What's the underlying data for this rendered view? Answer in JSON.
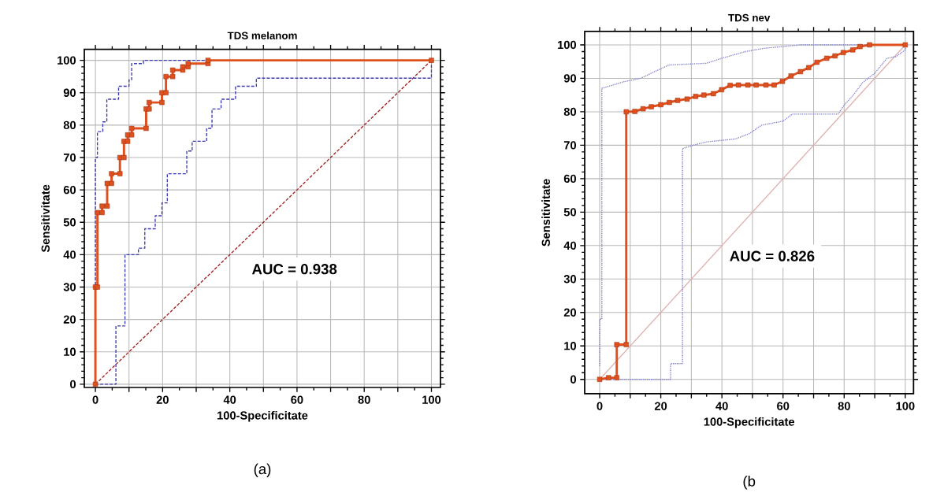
{
  "chart_data": [
    {
      "type": "line",
      "title": "TDS melanom",
      "xlabel": "100-Specificitate",
      "ylabel": "Sensitivitate",
      "annotations": [
        "AUC = 0.938",
        "(a)"
      ],
      "xlim": [
        -3.3,
        102.7
      ],
      "ylim": [
        -1,
        103.4
      ],
      "xticks": [
        0,
        {
          "value": 10,
          "label": null
        },
        20,
        {
          "value": 30,
          "label": null
        },
        40,
        {
          "value": 50,
          "label": null
        },
        60,
        {
          "value": 70,
          "label": null
        },
        80,
        {
          "value": 90,
          "label": null
        },
        100
      ],
      "yticks": [
        0,
        10,
        20,
        30,
        40,
        50,
        60,
        70,
        80,
        90,
        100
      ],
      "grid": true,
      "series": [
        {
          "color": "#a02020",
          "line_style": "dashed",
          "marker": "none",
          "x": [
            0,
            100
          ],
          "values": [
            0,
            100
          ]
        },
        {
          "color": "#3a3ab0",
          "line_style": "dashed",
          "marker": "none",
          "x": [
            0,
            0,
            0.6,
            0.6,
            2.2,
            2.2,
            3.4,
            3.4,
            6.9,
            6.9,
            10,
            10,
            10.8,
            10.8,
            14.3,
            14.3,
            100
          ],
          "values": [
            0,
            70,
            70,
            78,
            78,
            81,
            81,
            88,
            88,
            92,
            92,
            94,
            94,
            99,
            99,
            100,
            100
          ]
        },
        {
          "color": "#3a3ab0",
          "line_style": "dashed",
          "marker": "none",
          "x": [
            0,
            6.1,
            6.1,
            8.8,
            8.8,
            12.8,
            12.8,
            14.7,
            14.7,
            17.8,
            17.8,
            19.8,
            19.8,
            21.4,
            21.4,
            27.2,
            27.2,
            28.8,
            28.8,
            33.1,
            33.1,
            34.7,
            34.7,
            37.4,
            37.4,
            41.7,
            41.7,
            47.9,
            47.9,
            100,
            100
          ],
          "values": [
            0,
            0,
            18,
            18,
            40,
            40,
            42,
            42,
            48,
            48,
            52,
            52,
            56,
            56,
            65,
            65,
            72,
            72,
            75,
            75,
            79,
            79,
            85,
            85,
            88,
            88,
            92,
            92,
            94.5,
            94.5,
            100
          ]
        },
        {
          "color": "#e0501e",
          "line_style": "solid",
          "marker": "square",
          "x": [
            0,
            0,
            0.6,
            0.6,
            2,
            2,
            3.5,
            3.5,
            4.8,
            4.8,
            7.3,
            7.3,
            8.5,
            8.5,
            9.6,
            9.6,
            10.8,
            10.8,
            15.1,
            15.1,
            16,
            16,
            19.8,
            19.8,
            21,
            21,
            23,
            23,
            26,
            26,
            27.6,
            27.6,
            33.5,
            33.5,
            100
          ],
          "values": [
            0,
            30,
            30,
            53,
            53,
            55,
            55,
            62,
            62,
            65,
            65,
            70,
            70,
            75,
            75,
            77,
            77,
            79,
            79,
            85,
            85,
            87,
            87,
            90,
            90,
            95,
            95,
            97,
            97,
            98,
            98,
            99,
            99,
            100,
            100
          ]
        }
      ]
    },
    {
      "type": "line",
      "title": "TDS nev",
      "xlabel": "100-Specificitate",
      "ylabel": "Sensitivitate",
      "annotations": [
        "AUC = 0.826",
        "(b"
      ],
      "xlim": [
        -4.9,
        102.7
      ],
      "ylim": [
        -4.3,
        104
      ],
      "xticks": [
        0,
        {
          "value": 10,
          "label": null
        },
        20,
        {
          "value": 30,
          "label": null
        },
        40,
        {
          "value": 50,
          "label": null
        },
        60,
        {
          "value": 70,
          "label": null
        },
        80,
        {
          "value": 90,
          "label": null
        },
        100
      ],
      "yticks": [
        0,
        10,
        20,
        30,
        40,
        50,
        60,
        70,
        80,
        90,
        100
      ],
      "grid": true,
      "series": [
        {
          "color": "#e0b0b0",
          "line_style": "solid",
          "marker": "none",
          "x": [
            0,
            100
          ],
          "values": [
            0,
            100
          ]
        },
        {
          "color": "#8080c8",
          "line_style": "dotted",
          "marker": "none",
          "x": [
            0,
            0,
            0.7,
            0.7,
            8,
            13.4,
            18,
            22.8,
            35,
            40,
            47.7,
            54,
            65.7,
            100
          ],
          "values": [
            4,
            18,
            18,
            87,
            89,
            90,
            92,
            94,
            94.5,
            96,
            98,
            99,
            100,
            100
          ]
        },
        {
          "color": "#8080c8",
          "line_style": "dotted",
          "marker": "none",
          "x": [
            0,
            23.2,
            23.2,
            27.1,
            27.1,
            31.4,
            35,
            44.6,
            49,
            53,
            60,
            63,
            78,
            80,
            83,
            86,
            90,
            94,
            97,
            100,
            100
          ],
          "values": [
            0,
            0,
            4.7,
            4.7,
            69,
            70.2,
            71,
            71.9,
            73.5,
            76,
            77.2,
            79.3,
            79.3,
            82,
            85,
            88.7,
            91.5,
            96,
            96.5,
            98.5,
            100
          ]
        },
        {
          "color": "#e0501e",
          "line_style": "solid",
          "marker": "square",
          "x": [
            0,
            2.9,
            5.6,
            5.6,
            8.7,
            8.7,
            11.5,
            14.2,
            16.9,
            20,
            22.8,
            25.5,
            28.6,
            31.4,
            34.1,
            37.2,
            39.9,
            42.7,
            45.4,
            48.5,
            51.2,
            54.4,
            57.1,
            59.8,
            62.6,
            65.7,
            68.4,
            71.1,
            74.3,
            77,
            79.7,
            82.8,
            85.2,
            88.3,
            100
          ],
          "values": [
            0,
            0.5,
            0.5,
            10.4,
            10.4,
            80,
            80.1,
            80.9,
            81.5,
            82.1,
            82.8,
            83.4,
            83.8,
            84.6,
            85,
            85.4,
            86.6,
            87.9,
            88,
            88,
            88,
            88,
            88,
            89.1,
            90.7,
            92,
            93.2,
            94.8,
            96,
            96.7,
            97.7,
            98.5,
            99.5,
            100,
            100
          ]
        }
      ]
    }
  ]
}
